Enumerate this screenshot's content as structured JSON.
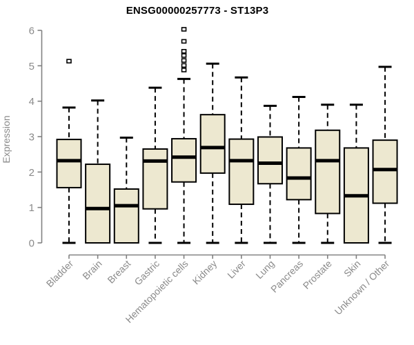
{
  "header": {
    "title": "ENSG00000257773 - ST13P3"
  },
  "chart_data": {
    "type": "boxplot",
    "title": "ENSG00000257773 - ST13P3",
    "xlabel": "",
    "ylabel": "Expression",
    "ylim": [
      0,
      6
    ],
    "y_ticks": [
      "0",
      "1",
      "2",
      "3",
      "4",
      "5",
      "6"
    ],
    "grid": false,
    "legend": null,
    "categories": [
      "Bladder",
      "Brain",
      "Breast",
      "Gastric",
      "Hematopoietic cells",
      "Kidney",
      "Liver",
      "Lung",
      "Pancreas",
      "Prostate",
      "Skin",
      "Unknown / Other"
    ],
    "series": [
      {
        "name": "Bladder",
        "low": 0.0,
        "q1": 1.56,
        "median": 2.32,
        "q3": 2.92,
        "high": 3.82,
        "outliers": [
          5.13
        ]
      },
      {
        "name": "Brain",
        "low": 0.0,
        "q1": 0.0,
        "median": 0.97,
        "q3": 2.22,
        "high": 4.02,
        "outliers": []
      },
      {
        "name": "Breast",
        "low": 0.0,
        "q1": 0.0,
        "median": 1.05,
        "q3": 1.52,
        "high": 2.97,
        "outliers": []
      },
      {
        "name": "Gastric",
        "low": 0.0,
        "q1": 0.96,
        "median": 2.31,
        "q3": 2.65,
        "high": 4.38,
        "outliers": []
      },
      {
        "name": "Hematopoietic cells",
        "low": 0.0,
        "q1": 1.72,
        "median": 2.42,
        "q3": 2.94,
        "high": 4.63,
        "outliers": [
          6.03,
          5.69,
          5.41,
          5.29,
          5.15,
          5.01,
          4.88
        ]
      },
      {
        "name": "Kidney",
        "low": 0.0,
        "q1": 1.97,
        "median": 2.69,
        "q3": 3.62,
        "high": 5.06,
        "outliers": []
      },
      {
        "name": "Liver",
        "low": 0.0,
        "q1": 1.09,
        "median": 2.32,
        "q3": 2.93,
        "high": 4.67,
        "outliers": []
      },
      {
        "name": "Lung",
        "low": 0.0,
        "q1": 1.67,
        "median": 2.25,
        "q3": 2.99,
        "high": 3.87,
        "outliers": []
      },
      {
        "name": "Pancreas",
        "low": 0.0,
        "q1": 1.22,
        "median": 1.83,
        "q3": 2.68,
        "high": 4.12,
        "outliers": []
      },
      {
        "name": "Prostate",
        "low": 0.0,
        "q1": 0.83,
        "median": 2.32,
        "q3": 3.18,
        "high": 3.9,
        "outliers": []
      },
      {
        "name": "Skin",
        "low": 0.0,
        "q1": 0.0,
        "median": 1.33,
        "q3": 2.68,
        "high": 3.9,
        "outliers": []
      },
      {
        "name": "Unknown / Other",
        "low": 0.0,
        "q1": 1.12,
        "median": 2.07,
        "q3": 2.9,
        "high": 4.97,
        "outliers": []
      }
    ],
    "colors": {
      "box_fill": "#EDE8D0",
      "box_border": "#000000",
      "median": "#000000",
      "whisker": "#000000",
      "axis": "#818181",
      "tick_label": "#8a8a8a",
      "title": "#000000",
      "background": "#ffffff"
    }
  }
}
